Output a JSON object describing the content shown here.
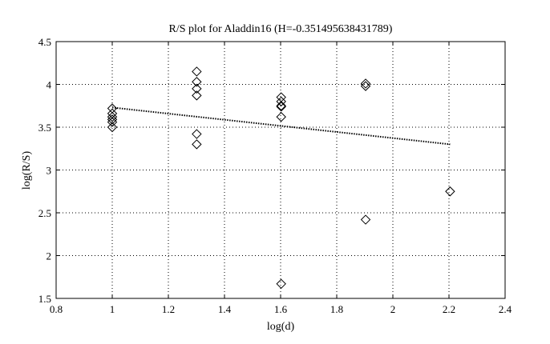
{
  "chart_data": {
    "type": "scatter",
    "title": "R/S plot for Aladdin16 (H=-0.351495638431789)",
    "xlabel": "log(d)",
    "ylabel": "log(R/S)",
    "xlim": [
      0.8,
      2.4
    ],
    "ylim": [
      1.5,
      4.5
    ],
    "grid": true,
    "xticks": [
      "0.8",
      "1",
      "1.2",
      "1.4",
      "1.6",
      "1.8",
      "2",
      "2.2",
      "2.4"
    ],
    "yticks": [
      "1.5",
      "2",
      "2.5",
      "3",
      "3.5",
      "4",
      "4.5"
    ],
    "series": [
      {
        "marker": "diamond",
        "points": [
          {
            "x": 1.0,
            "y": 3.72
          },
          {
            "x": 1.0,
            "y": 3.66
          },
          {
            "x": 1.0,
            "y": 3.62
          },
          {
            "x": 1.0,
            "y": 3.59
          },
          {
            "x": 1.0,
            "y": 3.56
          },
          {
            "x": 1.0,
            "y": 3.5
          },
          {
            "x": 1.301,
            "y": 4.15
          },
          {
            "x": 1.301,
            "y": 4.03
          },
          {
            "x": 1.301,
            "y": 3.95
          },
          {
            "x": 1.301,
            "y": 3.87
          },
          {
            "x": 1.301,
            "y": 3.42
          },
          {
            "x": 1.301,
            "y": 3.3
          },
          {
            "x": 1.602,
            "y": 3.85
          },
          {
            "x": 1.602,
            "y": 3.8
          },
          {
            "x": 1.602,
            "y": 3.75
          },
          {
            "x": 1.602,
            "y": 3.74
          },
          {
            "x": 1.602,
            "y": 3.62
          },
          {
            "x": 1.602,
            "y": 1.67
          },
          {
            "x": 1.903,
            "y": 4.01
          },
          {
            "x": 1.903,
            "y": 3.98
          },
          {
            "x": 1.903,
            "y": 2.42
          },
          {
            "x": 2.204,
            "y": 2.75
          }
        ]
      }
    ],
    "fit_line": {
      "x": [
        1.0,
        2.204
      ],
      "y": [
        3.73,
        3.3
      ],
      "style": "dotted"
    }
  }
}
